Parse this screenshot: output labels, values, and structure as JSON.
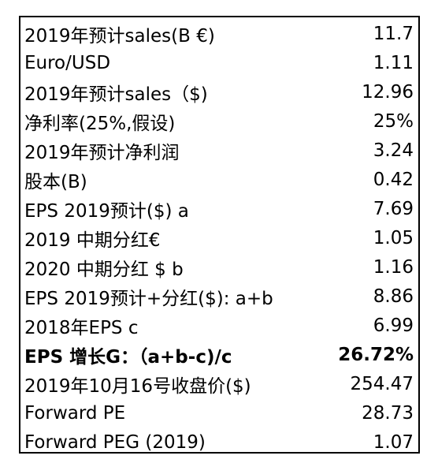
{
  "table": {
    "rows": [
      {
        "label": "2019年预计sales(B €)",
        "value": "11.7"
      },
      {
        "label": "Euro/USD",
        "value": "1.11"
      },
      {
        "label": "2019年预计sales（$)",
        "value": "12.96"
      },
      {
        "label": "净利率(25%,假设)",
        "value": "25%"
      },
      {
        "label": "2019年预计净利润",
        "value": "3.24"
      },
      {
        "label": "股本(B)",
        "value": "0.42"
      },
      {
        "label": "EPS 2019预计($) a",
        "value": "7.69"
      },
      {
        "label": "2019 中期分红€",
        "value": "1.05"
      },
      {
        "label": "2020 中期分红 $ b",
        "value": "1.16"
      },
      {
        "label": "EPS 2019预计+分红($): a+b",
        "value": "8.86"
      },
      {
        "label": "2018年EPS c",
        "value": "6.99"
      },
      {
        "label": "EPS 增长G：（a+b-c)/c",
        "value": "26.72%"
      },
      {
        "label": "2019年10月16号收盘价($)",
        "value": "254.47"
      },
      {
        "label": "Forward PE",
        "value": "28.73"
      },
      {
        "label": "Forward PEG (2019)",
        "value": "1.07"
      }
    ]
  }
}
